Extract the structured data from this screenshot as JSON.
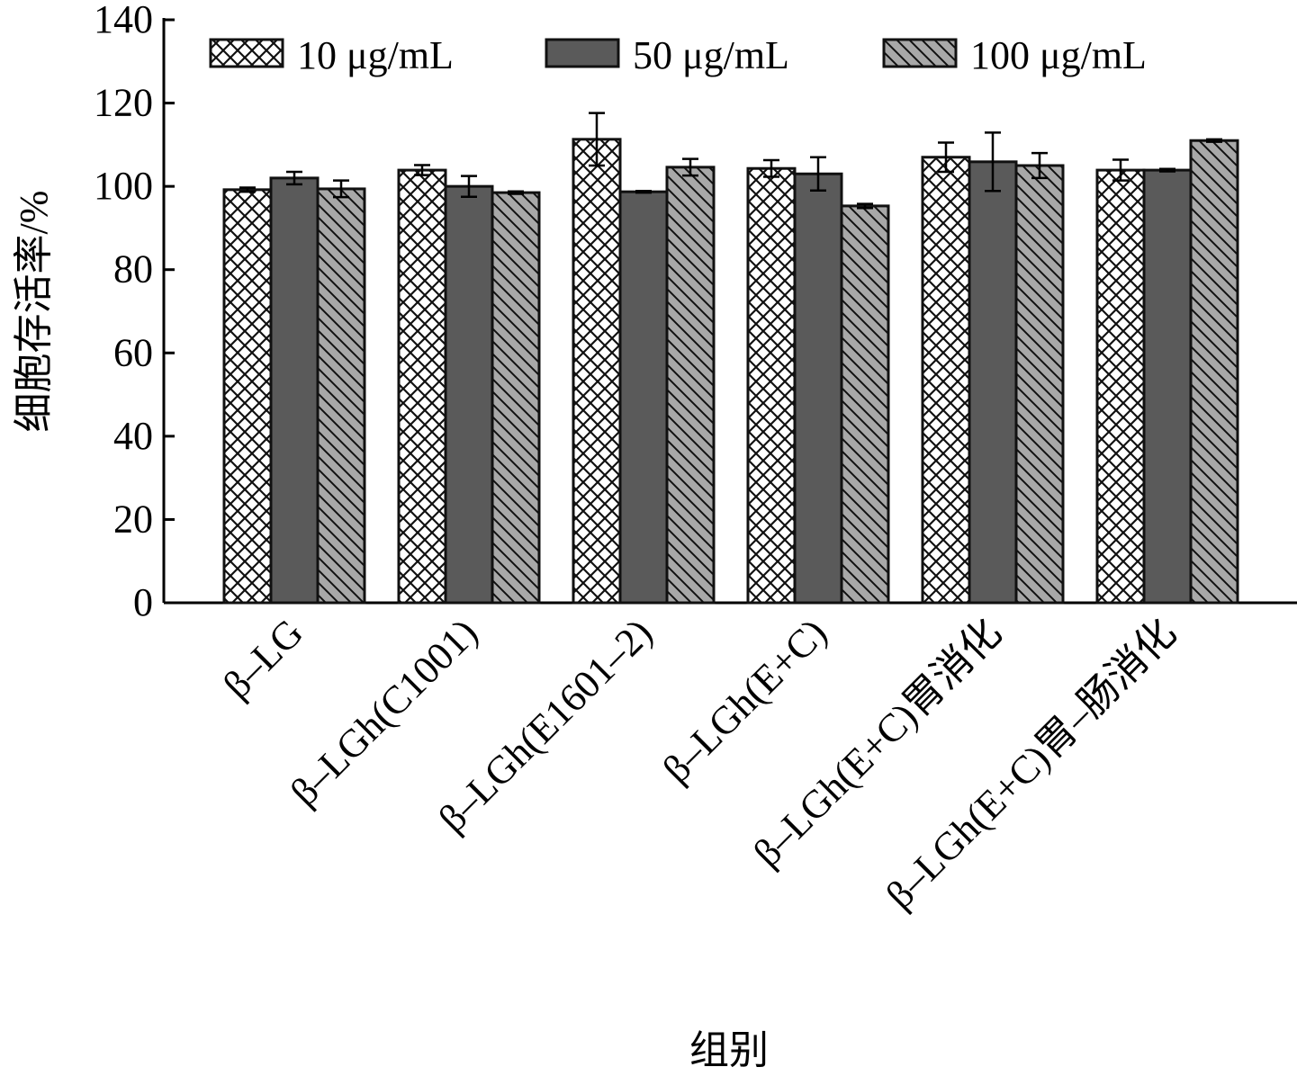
{
  "chart_data": {
    "type": "bar",
    "title": "",
    "xlabel": "组别",
    "ylabel": "细胞存活率/%",
    "ylim": [
      0,
      140
    ],
    "yticks": [
      0,
      20,
      40,
      60,
      80,
      100,
      120,
      140
    ],
    "legend_position": "top",
    "categories": [
      "β–LG",
      "β–LGh(C1001)",
      "β–LGh(E1601–2)",
      "β–LGh(E+C)",
      "β–LGh(E+C)胃消化",
      "β–LGh(E+C)胃–肠消化"
    ],
    "series": [
      {
        "name": "10 μg/mL",
        "pattern": "crosshatch",
        "color": "#ffffff",
        "values": [
          99.2,
          103.9,
          111.3,
          104.3,
          107.0,
          103.9
        ],
        "errors": [
          0.5,
          1.2,
          6.3,
          2.0,
          3.5,
          2.5
        ]
      },
      {
        "name": "50 μg/mL",
        "pattern": "solid",
        "color": "#5a5a5a",
        "values": [
          102.0,
          100.0,
          98.7,
          103.0,
          105.9,
          103.9
        ],
        "errors": [
          1.5,
          2.5,
          0.2,
          4.0,
          7.0,
          0.3
        ]
      },
      {
        "name": "100 μg/mL",
        "pattern": "diagonal",
        "color": "#a8a8a8",
        "values": [
          99.4,
          98.5,
          104.6,
          95.3,
          105.0,
          111.0
        ],
        "errors": [
          2.0,
          0.3,
          2.0,
          0.5,
          3.0,
          0.3
        ]
      }
    ]
  }
}
